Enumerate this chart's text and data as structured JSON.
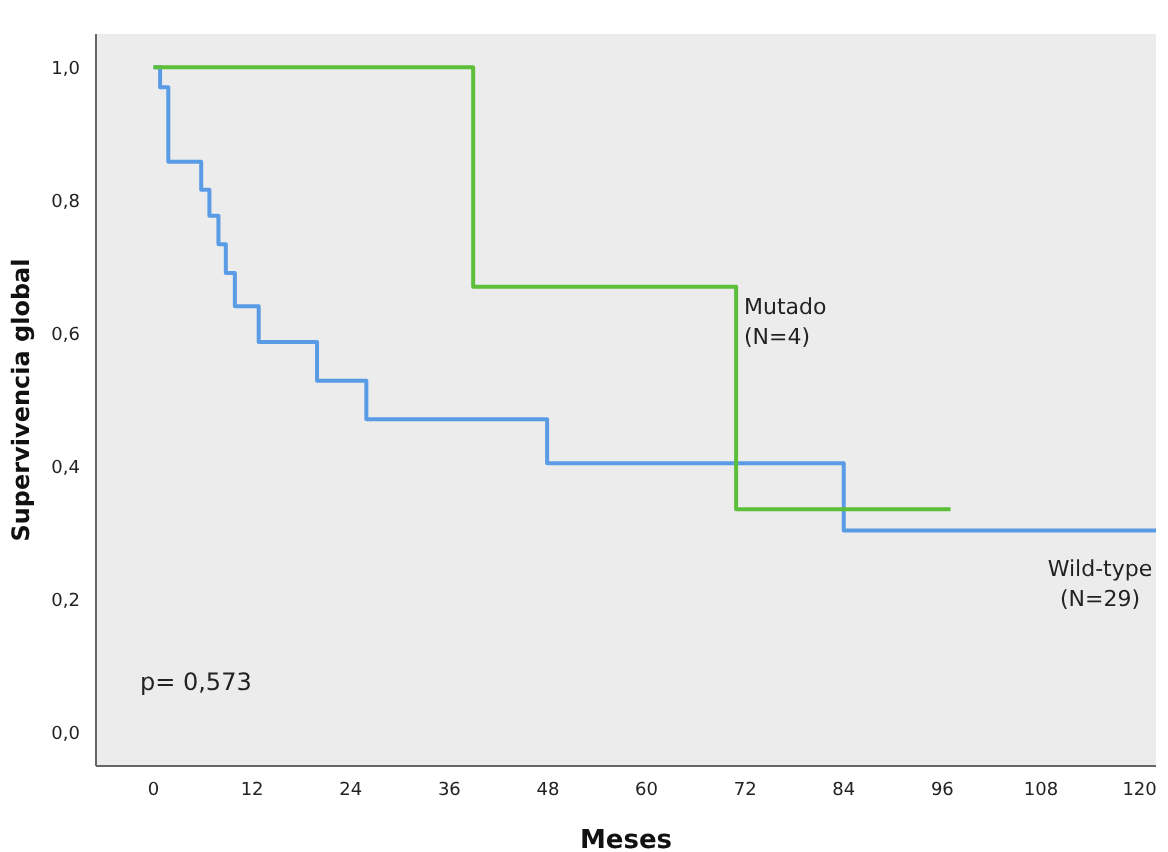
{
  "chart_data": {
    "type": "step",
    "xlabel": "Meses",
    "ylabel": "Supervivencia global",
    "xlim": [
      -7,
      122
    ],
    "xticks": [
      0,
      12,
      24,
      36,
      48,
      60,
      72,
      84,
      96,
      108,
      120
    ],
    "ylim": [
      -0.05,
      1.05
    ],
    "yticks": [
      {
        "value": 0,
        "label": "0,0"
      },
      {
        "value": 0.2,
        "label": "0,2"
      },
      {
        "value": 0.4,
        "label": "0,4"
      },
      {
        "value": 0.6,
        "label": "0,6"
      },
      {
        "value": 0.8,
        "label": "0,8"
      },
      {
        "value": 1,
        "label": "1,0"
      }
    ],
    "grid": false,
    "legend": false,
    "marker": "none",
    "line_style": "solid",
    "series": [
      {
        "name": "Wild-type (N=29)",
        "color": "#5a9be6",
        "x": [
          0,
          0.8,
          1.8,
          5.8,
          6.8,
          7.9,
          8.8,
          9.9,
          12.8,
          19.9,
          25.9,
          47.9,
          84,
          122
        ],
        "values": [
          1,
          0.97,
          0.858,
          0.816,
          0.777,
          0.734,
          0.691,
          0.641,
          0.587,
          0.529,
          0.471,
          0.405,
          0.304,
          0.304
        ]
      },
      {
        "name": "Mutado (N=4)",
        "color": "#5cbf3a",
        "x": [
          0,
          38.9,
          70.9,
          97
        ],
        "values": [
          1,
          0.67,
          0.336,
          0.336
        ]
      }
    ],
    "annotations": [
      "p= 0,573"
    ]
  }
}
